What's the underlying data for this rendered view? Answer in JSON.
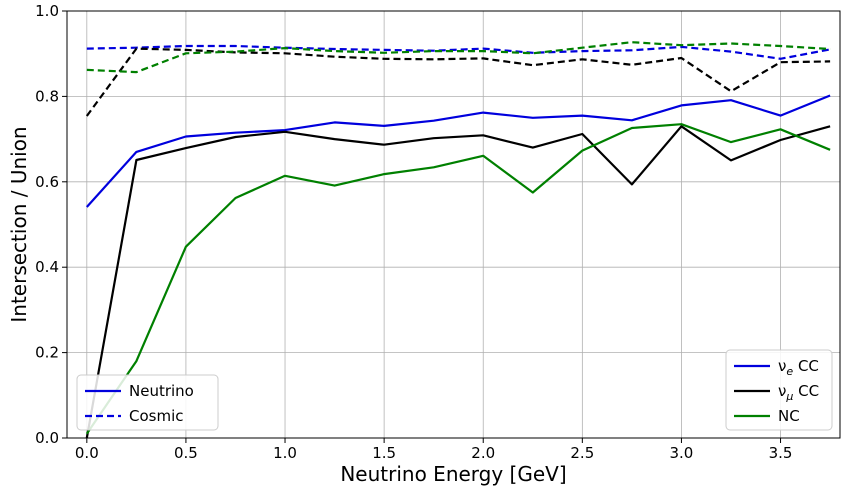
{
  "chart_data": {
    "type": "line",
    "xlabel": "Neutrino Energy [GeV]",
    "ylabel": "Intersection / Union",
    "xlim": [
      -0.1,
      3.8
    ],
    "ylim": [
      0.0,
      1.0
    ],
    "x_ticks": [
      "0.0",
      "0.5",
      "1.0",
      "1.5",
      "2.0",
      "2.5",
      "3.0",
      "3.5"
    ],
    "x_tick_values": [
      0.0,
      0.5,
      1.0,
      1.5,
      2.0,
      2.5,
      3.0,
      3.5
    ],
    "y_ticks": [
      "0.0",
      "0.2",
      "0.4",
      "0.6",
      "0.8",
      "1.0"
    ],
    "y_tick_values": [
      0.0,
      0.2,
      0.4,
      0.6,
      0.8,
      1.0
    ],
    "grid": true,
    "x": [
      0.0,
      0.25,
      0.5,
      0.75,
      1.0,
      1.25,
      1.5,
      1.75,
      2.0,
      2.25,
      2.5,
      2.75,
      3.0,
      3.25,
      3.5,
      3.75
    ],
    "series": [
      {
        "key": "nue-neutrino",
        "color": "#0000dd",
        "dash": "solid",
        "values": [
          0.541,
          0.67,
          0.706,
          0.715,
          0.721,
          0.739,
          0.731,
          0.743,
          0.762,
          0.75,
          0.755,
          0.744,
          0.779,
          0.791,
          0.755,
          0.802
        ]
      },
      {
        "key": "numu-neutrino",
        "color": "#000000",
        "dash": "solid",
        "values": [
          0.0,
          0.651,
          0.679,
          0.705,
          0.717,
          0.7,
          0.687,
          0.702,
          0.709,
          0.68,
          0.712,
          0.594,
          0.73,
          0.65,
          0.698,
          0.73
        ]
      },
      {
        "key": "nc-neutrino",
        "color": "#008000",
        "dash": "solid",
        "values": [
          0.01,
          0.18,
          0.448,
          0.562,
          0.614,
          0.591,
          0.618,
          0.634,
          0.661,
          0.575,
          0.673,
          0.726,
          0.735,
          0.693,
          0.723,
          0.675
        ]
      },
      {
        "key": "nue-cosmic",
        "color": "#0000dd",
        "dash": "dashed",
        "values": [
          0.912,
          0.914,
          0.918,
          0.918,
          0.914,
          0.911,
          0.909,
          0.907,
          0.912,
          0.902,
          0.906,
          0.908,
          0.916,
          0.905,
          0.888,
          0.91
        ]
      },
      {
        "key": "numu-cosmic",
        "color": "#000000",
        "dash": "dashed",
        "values": [
          0.754,
          0.912,
          0.909,
          0.903,
          0.901,
          0.893,
          0.888,
          0.887,
          0.889,
          0.873,
          0.887,
          0.874,
          0.89,
          0.812,
          0.88,
          0.882
        ]
      },
      {
        "key": "nc-cosmic",
        "color": "#008000",
        "dash": "dashed",
        "values": [
          0.862,
          0.857,
          0.901,
          0.905,
          0.913,
          0.906,
          0.902,
          0.906,
          0.906,
          0.901,
          0.914,
          0.927,
          0.92,
          0.924,
          0.918,
          0.911
        ]
      }
    ],
    "legends": [
      {
        "placement": "lower-left",
        "entries": [
          {
            "label": "Neutrino",
            "color": "#0000dd",
            "dash": "solid"
          },
          {
            "label": "Cosmic",
            "color": "#0000dd",
            "dash": "dashed"
          }
        ]
      },
      {
        "placement": "lower-right",
        "entries": [
          {
            "label_base": "ν",
            "label_sub": "e",
            "label_rest": " CC",
            "color": "#0000dd",
            "dash": "solid"
          },
          {
            "label_base": "ν",
            "label_sub": "μ",
            "label_rest": " CC",
            "color": "#000000",
            "dash": "solid"
          },
          {
            "label_base": "NC",
            "label_sub": "",
            "label_rest": "",
            "color": "#008000",
            "dash": "solid"
          }
        ]
      }
    ]
  }
}
